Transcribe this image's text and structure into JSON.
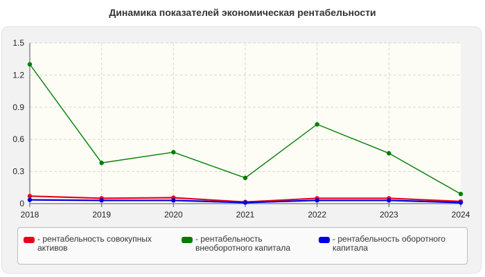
{
  "title": "Динамика показателей экономическая рентабельности",
  "chart_data": {
    "type": "line",
    "x": [
      "2018",
      "2019",
      "2020",
      "2021",
      "2022",
      "2023",
      "2024"
    ],
    "ylim": [
      0,
      1.5
    ],
    "yticks": [
      "0",
      "0.3",
      "0.6",
      "0.9",
      "1.2",
      "1.5"
    ],
    "grid": true,
    "legend_placement": "bottom",
    "series": [
      {
        "name": "рентабельность совокупных активов",
        "color": "#e8001c",
        "values": [
          0.07,
          0.05,
          0.055,
          0.015,
          0.05,
          0.05,
          0.02
        ]
      },
      {
        "name": "рентабельность внеоборотного капитала",
        "color": "#007d00",
        "values": [
          1.3,
          0.38,
          0.48,
          0.24,
          0.74,
          0.47,
          0.09
        ]
      },
      {
        "name": "рентабельность оборотного капитала",
        "color": "#0000e6",
        "values": [
          0.035,
          0.03,
          0.03,
          0.01,
          0.03,
          0.03,
          0.01
        ]
      }
    ]
  },
  "legend": [
    {
      "prefix": "- ",
      "text": "рентабельность совокупных активов",
      "color": "#e8001c"
    },
    {
      "prefix": "- ",
      "text": "рентабельность внеоборотного капитала",
      "color": "#007d00"
    },
    {
      "prefix": "- ",
      "text": "рентабельность оборотного капитала",
      "color": "#0000e6"
    }
  ]
}
